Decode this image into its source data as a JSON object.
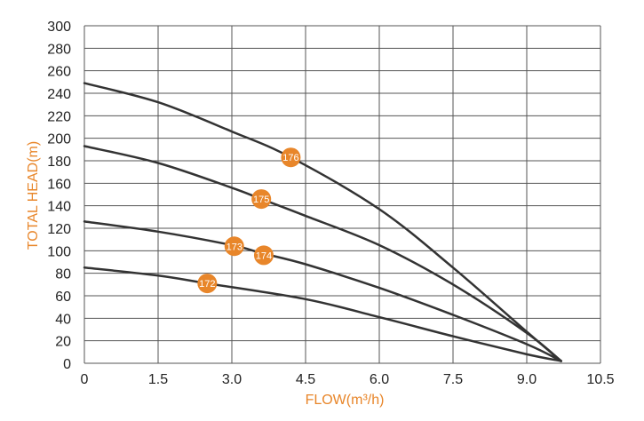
{
  "colors": {
    "accent": "#e8862a",
    "curve": "#333333",
    "grid": "#555555",
    "tick": "#222222"
  },
  "chart_data": {
    "type": "line",
    "xlabel": "FLOW(m³/h)",
    "ylabel": "TOTAL HEAD(m)",
    "xlim": [
      0,
      10.5
    ],
    "ylim": [
      0,
      300
    ],
    "xticks": [
      0,
      1.5,
      3.0,
      4.5,
      6.0,
      7.5,
      9.0,
      10.5
    ],
    "xtick_labels": [
      "0",
      "1.5",
      "3.0",
      "4.5",
      "6.0",
      "7.5",
      "9.0",
      "10.5"
    ],
    "yticks": [
      0,
      20,
      40,
      60,
      80,
      100,
      120,
      140,
      160,
      180,
      200,
      220,
      240,
      260,
      280,
      300
    ],
    "ytick_labels": [
      "0",
      "20",
      "40",
      "60",
      "80",
      "100",
      "120",
      "140",
      "160",
      "180",
      "200",
      "220",
      "240",
      "260",
      "280",
      "300"
    ],
    "grid": true,
    "series": [
      {
        "name": "176",
        "x": [
          0,
          1.5,
          3.0,
          4.2,
          6.0,
          7.5,
          9.0,
          9.7
        ],
        "values": [
          249,
          232,
          206,
          183,
          137,
          85,
          28,
          2
        ],
        "marker": {
          "label": "176",
          "x": 4.2,
          "y": 183
        }
      },
      {
        "name": "175",
        "x": [
          0,
          1.5,
          3.0,
          3.6,
          4.5,
          6.0,
          7.5,
          9.0,
          9.7
        ],
        "values": [
          193,
          178,
          156,
          146,
          131,
          105,
          70,
          27,
          2
        ],
        "marker": {
          "label": "175",
          "x": 3.6,
          "y": 146
        }
      },
      {
        "name": "173/174",
        "x": [
          0,
          1.5,
          3.0,
          3.6,
          4.5,
          6.0,
          7.5,
          9.0,
          9.7
        ],
        "values": [
          126,
          117,
          105,
          98,
          88,
          67,
          43,
          17,
          2
        ],
        "markers": [
          {
            "label": "173",
            "x": 3.05,
            "y": 104
          },
          {
            "label": "174",
            "x": 3.65,
            "y": 96
          }
        ]
      },
      {
        "name": "172",
        "x": [
          0,
          1.5,
          2.5,
          4.5,
          6.0,
          7.5,
          9.0,
          9.7
        ],
        "values": [
          85,
          78,
          71,
          57,
          41,
          24,
          8,
          2
        ],
        "marker": {
          "label": "172",
          "x": 2.5,
          "y": 71
        }
      }
    ]
  }
}
